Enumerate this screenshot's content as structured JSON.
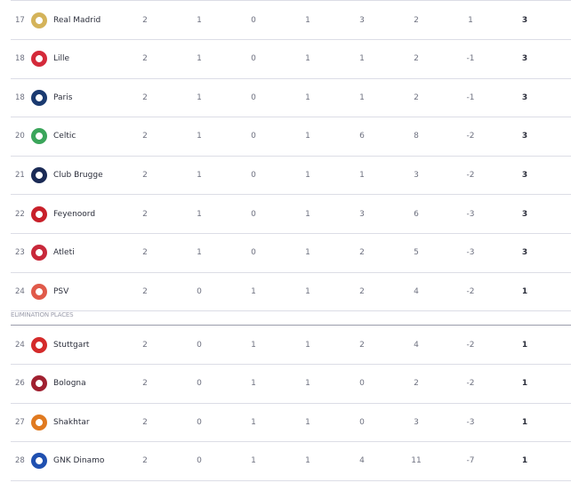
{
  "elimination_label": "ELIMINATION PLACES",
  "rows_top": [
    {
      "rank": "17",
      "team": "Real Madrid",
      "logo": "real-madrid-crest",
      "color": "#d4b35a",
      "p": "2",
      "w": "1",
      "d": "0",
      "l": "1",
      "gf": "3",
      "ga": "2",
      "gd": "1",
      "pts": "3"
    },
    {
      "rank": "18",
      "team": "Lille",
      "logo": "lille-crest",
      "color": "#d42a3a",
      "p": "2",
      "w": "1",
      "d": "0",
      "l": "1",
      "gf": "1",
      "ga": "2",
      "gd": "-1",
      "pts": "3"
    },
    {
      "rank": "18",
      "team": "Paris",
      "logo": "psg-crest",
      "color": "#1a3a70",
      "p": "2",
      "w": "1",
      "d": "0",
      "l": "1",
      "gf": "1",
      "ga": "2",
      "gd": "-1",
      "pts": "3"
    },
    {
      "rank": "20",
      "team": "Celtic",
      "logo": "celtic-crest",
      "color": "#3aa55a",
      "p": "2",
      "w": "1",
      "d": "0",
      "l": "1",
      "gf": "6",
      "ga": "8",
      "gd": "-2",
      "pts": "3"
    },
    {
      "rank": "21",
      "team": "Club Brugge",
      "logo": "club-brugge-crest",
      "color": "#1a2a55",
      "p": "2",
      "w": "1",
      "d": "0",
      "l": "1",
      "gf": "1",
      "ga": "3",
      "gd": "-2",
      "pts": "3"
    },
    {
      "rank": "22",
      "team": "Feyenoord",
      "logo": "feyenoord-crest",
      "color": "#c8202a",
      "p": "2",
      "w": "1",
      "d": "0",
      "l": "1",
      "gf": "3",
      "ga": "6",
      "gd": "-3",
      "pts": "3"
    },
    {
      "rank": "23",
      "team": "Atleti",
      "logo": "atletico-crest",
      "color": "#c8283a",
      "p": "2",
      "w": "1",
      "d": "0",
      "l": "1",
      "gf": "2",
      "ga": "5",
      "gd": "-3",
      "pts": "3"
    },
    {
      "rank": "24",
      "team": "PSV",
      "logo": "psv-crest",
      "color": "#e05a4a",
      "p": "2",
      "w": "0",
      "d": "1",
      "l": "1",
      "gf": "2",
      "ga": "4",
      "gd": "-2",
      "pts": "1"
    }
  ],
  "rows_bottom": [
    {
      "rank": "24",
      "team": "Stuttgart",
      "logo": "stuttgart-crest",
      "color": "#d42a2a",
      "p": "2",
      "w": "0",
      "d": "1",
      "l": "1",
      "gf": "2",
      "ga": "4",
      "gd": "-2",
      "pts": "1"
    },
    {
      "rank": "26",
      "team": "Bologna",
      "logo": "bologna-crest",
      "color": "#a02030",
      "p": "2",
      "w": "0",
      "d": "1",
      "l": "1",
      "gf": "0",
      "ga": "2",
      "gd": "-2",
      "pts": "1"
    },
    {
      "rank": "27",
      "team": "Shakhtar",
      "logo": "shakhtar-crest",
      "color": "#e07a20",
      "p": "2",
      "w": "0",
      "d": "1",
      "l": "1",
      "gf": "0",
      "ga": "3",
      "gd": "-3",
      "pts": "1"
    },
    {
      "rank": "28",
      "team": "GNK Dinamo",
      "logo": "dinamo-zagreb-crest",
      "color": "#2050b0",
      "p": "2",
      "w": "0",
      "d": "1",
      "l": "1",
      "gf": "4",
      "ga": "11",
      "gd": "-7",
      "pts": "1"
    }
  ]
}
